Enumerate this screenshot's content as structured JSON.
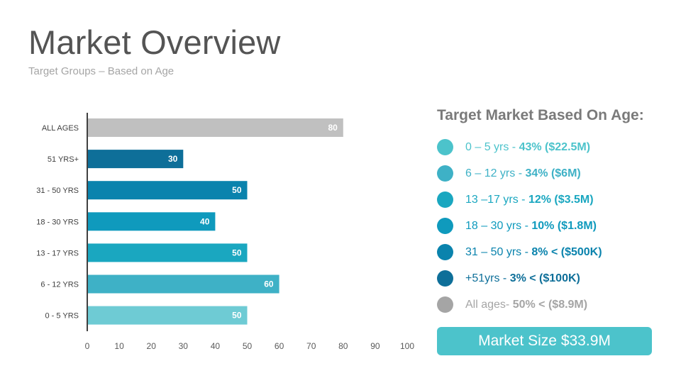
{
  "header": {
    "title": "Market Overview",
    "subtitle": "Target Groups – Based on Age"
  },
  "chart_data": {
    "type": "bar",
    "orientation": "horizontal",
    "categories": [
      "ALL AGES",
      "51 YRS+",
      "31 - 50 YRS",
      "18 - 30 YRS",
      "13 - 17 YRS",
      "6 - 12 YRS",
      "0 - 5 YRS"
    ],
    "values": [
      80,
      30,
      50,
      40,
      50,
      60,
      50
    ],
    "data_labels": [
      "80",
      "30",
      "50",
      "40",
      "50",
      "60",
      "50"
    ],
    "colors": [
      "#c0c0c0",
      "#0e6f99",
      "#0a83ad",
      "#0f9abd",
      "#1aa7c0",
      "#3eb1c6",
      "#6ecbd4"
    ],
    "xlim": [
      0,
      100
    ],
    "xticks": [
      0,
      10,
      20,
      30,
      40,
      50,
      60,
      70,
      80,
      90,
      100
    ],
    "xlabel": "",
    "ylabel": "",
    "title": "",
    "grid": false,
    "legend": "none"
  },
  "panel": {
    "heading": "Target Market Based On Age:",
    "items": [
      {
        "range": "0 – 5 yrs - ",
        "stat": "43% ($22.5M)",
        "color": "#4cc3cb"
      },
      {
        "range": "6 – 12 yrs - ",
        "stat": "34% ($6M)",
        "color": "#3eb1c6"
      },
      {
        "range": "13 –17 yrs - ",
        "stat": "12% ($3.5M)",
        "color": "#1aa7c0"
      },
      {
        "range": "18 – 30 yrs - ",
        "stat": "10% ($1.8M)",
        "color": "#0f9abd"
      },
      {
        "range": "31 – 50 yrs - ",
        "stat": "8% < ($500K)",
        "color": "#0a83ad"
      },
      {
        "range": "+51yrs - ",
        "stat": "3% < ($100K)",
        "color": "#0e6f99"
      },
      {
        "range": "All ages- ",
        "stat": "50% < ($8.9M)",
        "color": "#a5a5a5"
      }
    ],
    "market_size_label": "Market Size $33.9M"
  }
}
